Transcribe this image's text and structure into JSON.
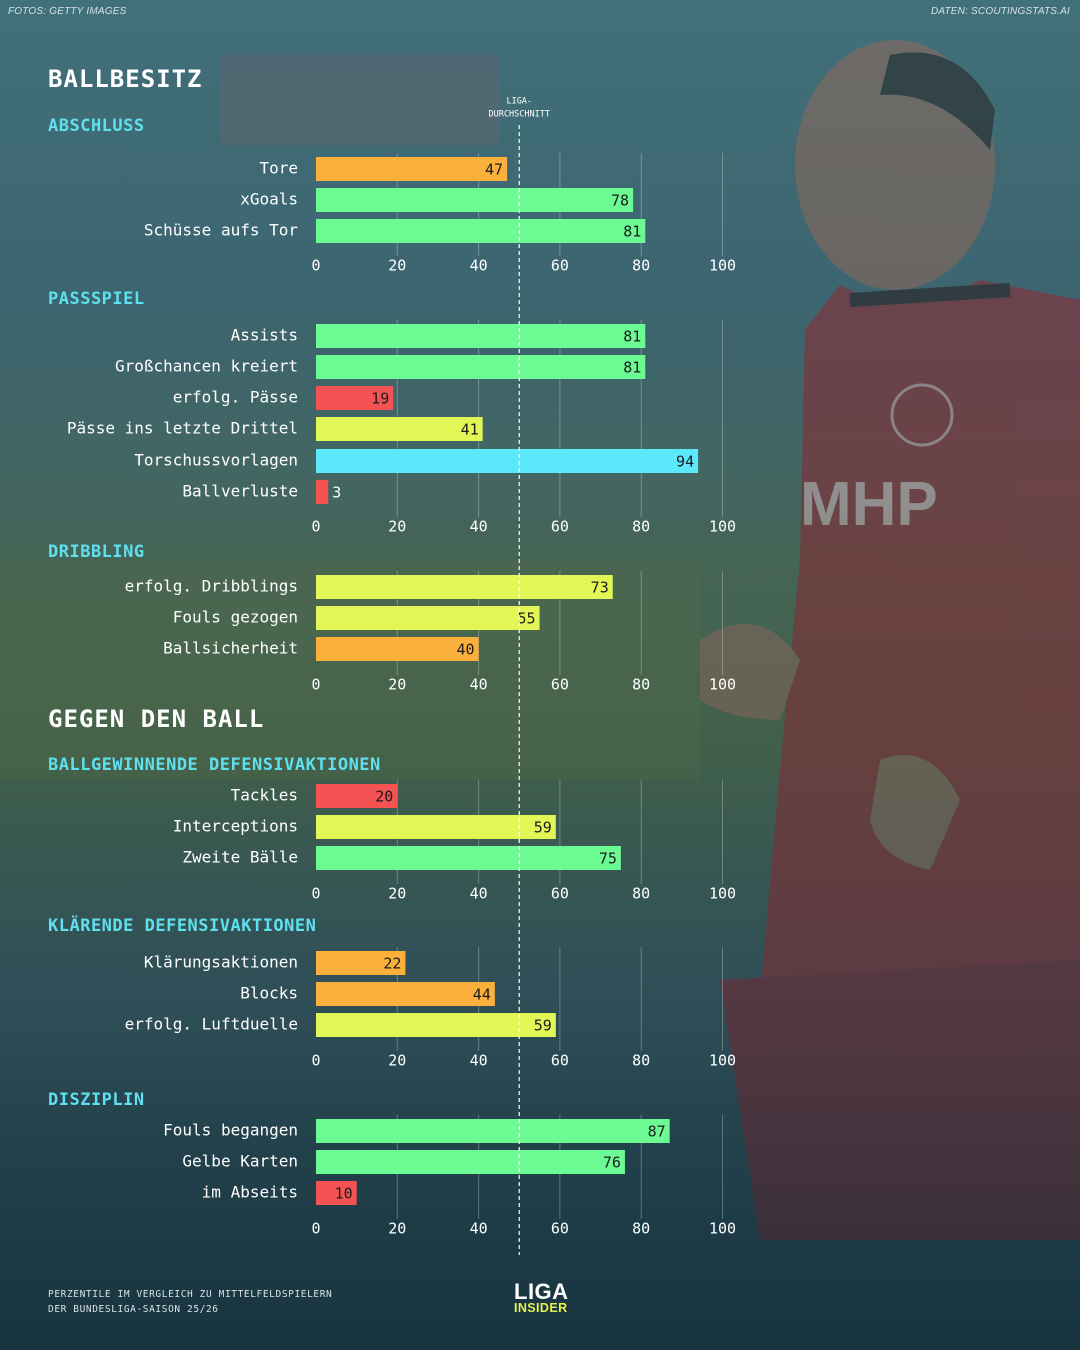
{
  "credits": {
    "photo": "FOTOS: GETTY IMAGES",
    "data": "DATEN: SCOUTINGSTATS.AI"
  },
  "colors": {
    "green": "#6cfa93",
    "yellow": "#e2f655",
    "orange": "#fbb03b",
    "red": "#f55353",
    "cyan": "#5ce8fb",
    "group_title": "#5fe0ee"
  },
  "avg_line": {
    "label_line1": "LIGA-",
    "label_line2": "DURCHSCHNITT",
    "value": 50
  },
  "footer": {
    "note_line1": "PERZENTILE IM VERGLEICH ZU MITTELFELDSPIELERN",
    "note_line2": "DER BUNDESLIGA-SAISON 25/26",
    "logo_line1": "LIGA",
    "logo_line2": "INSIDER"
  },
  "chart_data": {
    "type": "bar",
    "orientation": "horizontal",
    "xlim": [
      0,
      100
    ],
    "ticks": [
      0,
      20,
      40,
      60,
      80,
      100
    ],
    "grid": true,
    "reference_line": 50,
    "sections": [
      {
        "title": "BALLBESITZ",
        "groups": [
          {
            "title": "ABSCHLUSS",
            "rows": [
              {
                "label": "Tore",
                "value": 47,
                "color": "orange"
              },
              {
                "label": "xGoals",
                "value": 78,
                "color": "green"
              },
              {
                "label": "Schüsse aufs Tor",
                "value": 81,
                "color": "green"
              }
            ]
          },
          {
            "title": "PASSSPIEL",
            "rows": [
              {
                "label": "Assists",
                "value": 81,
                "color": "green"
              },
              {
                "label": "Großchancen kreiert",
                "value": 81,
                "color": "green"
              },
              {
                "label": "erfolg. Pässe",
                "value": 19,
                "color": "red"
              },
              {
                "label": "Pässe ins letzte Drittel",
                "value": 41,
                "color": "yellow"
              },
              {
                "label": "Torschussvorlagen",
                "value": 94,
                "color": "cyan"
              },
              {
                "label": "Ballverluste",
                "value": 3,
                "color": "red"
              }
            ]
          },
          {
            "title": "DRIBBLING",
            "rows": [
              {
                "label": "erfolg. Dribblings",
                "value": 73,
                "color": "yellow"
              },
              {
                "label": "Fouls gezogen",
                "value": 55,
                "color": "yellow"
              },
              {
                "label": "Ballsicherheit",
                "value": 40,
                "color": "orange"
              }
            ]
          }
        ]
      },
      {
        "title": "GEGEN DEN BALL",
        "groups": [
          {
            "title": "BALLGEWINNENDE DEFENSIVAKTIONEN",
            "rows": [
              {
                "label": "Tackles",
                "value": 20,
                "color": "red"
              },
              {
                "label": "Interceptions",
                "value": 59,
                "color": "yellow"
              },
              {
                "label": "Zweite Bälle",
                "value": 75,
                "color": "green"
              }
            ]
          },
          {
            "title": "KLÄRENDE DEFENSIVAKTIONEN",
            "rows": [
              {
                "label": "Klärungsaktionen",
                "value": 22,
                "color": "orange"
              },
              {
                "label": "Blocks",
                "value": 44,
                "color": "orange"
              },
              {
                "label": "erfolg. Luftduelle",
                "value": 59,
                "color": "yellow"
              }
            ]
          },
          {
            "title": "DISZIPLIN",
            "rows": [
              {
                "label": "Fouls begangen",
                "value": 87,
                "color": "green"
              },
              {
                "label": "Gelbe Karten",
                "value": 76,
                "color": "green"
              },
              {
                "label": "im Abseits",
                "value": 10,
                "color": "red"
              }
            ]
          }
        ]
      }
    ]
  }
}
